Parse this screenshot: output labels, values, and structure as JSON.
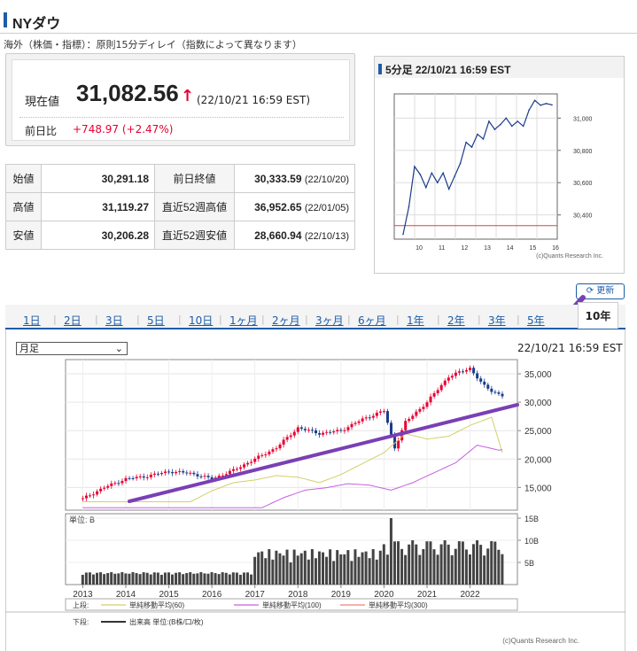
{
  "header": {
    "title": "NYダウ"
  },
  "note": "海外（株価・指標）：原則15分ディレイ（指数によって異なります）",
  "price": {
    "label": "現在値",
    "value": "31,082.56",
    "arrow": "↑",
    "time": "(22/10/21 16:59 EST)",
    "change_label": "前日比",
    "change": "+748.97 (+2.47%)"
  },
  "stats": [
    {
      "l1": "始値",
      "v1": "30,291.18",
      "l2": "前日終値",
      "v2": "30,333.59",
      "d2": "(22/10/20)"
    },
    {
      "l1": "高値",
      "v1": "31,119.27",
      "l2": "直近52週高値",
      "v2": "36,952.65",
      "d2": "(22/01/05)"
    },
    {
      "l1": "安値",
      "v1": "30,206.28",
      "l2": "直近52週安値",
      "v2": "28,660.94",
      "d2": "(22/10/13)"
    }
  ],
  "mini_chart": {
    "title": "5分足 22/10/21 16:59 EST",
    "y_ticks": [
      "31,000",
      "30,800",
      "30,600",
      "30,400"
    ],
    "x_ticks": [
      "10",
      "11",
      "12",
      "13",
      "14",
      "15",
      "16"
    ],
    "credit": "(c)Quants Research Inc.",
    "reference_line": 30333.59,
    "color": "#1a3c8a"
  },
  "update_button": "更新",
  "tabs": [
    "1日",
    "2日",
    "3日",
    "5日",
    "10日",
    "1ヶ月",
    "2ヶ月",
    "3ヶ月",
    "6ヶ月",
    "1年",
    "2年",
    "3年",
    "5年",
    "10年"
  ],
  "active_tab": "10年",
  "main_chart": {
    "period_select": "月足",
    "timestamp": "22/10/21 16:59 EST",
    "y_ticks": [
      "35,000",
      "30,000",
      "25,000",
      "20,000",
      "15,000"
    ],
    "vol_unit": "単位: B",
    "vol_ticks": [
      "15B",
      "10B",
      "5B"
    ],
    "x_ticks": [
      "2013",
      "2014",
      "2015",
      "2016",
      "2017",
      "2018",
      "2019",
      "2020",
      "2021",
      "2022"
    ],
    "legend_upper_label": "上段:",
    "legend_upper": [
      "単純移動平均(60)",
      "単純移動平均(100)",
      "単純移動平均(300)"
    ],
    "legend_lower_label": "下段:",
    "legend_lower": "出来高 単位:(B株/口/枚)",
    "credit": "(c)Quants Research Inc.",
    "colors": {
      "up": "#e60033",
      "down": "#1a3c8a",
      "ma60": "#d4cf6a",
      "ma100": "#c561e0",
      "ma300": "#f08070",
      "trend": "#7a3fb5"
    }
  },
  "chart_data": [
    {
      "type": "line",
      "title": "5分足 22/10/21 16:59 EST",
      "x": [
        "09:35",
        "09:45",
        "10:00",
        "10:15",
        "10:30",
        "10:45",
        "11:00",
        "11:15",
        "11:30",
        "11:45",
        "12:00",
        "12:15",
        "12:30",
        "12:45",
        "13:00",
        "13:15",
        "13:30",
        "13:45",
        "14:00",
        "14:15",
        "14:30",
        "14:45",
        "15:00",
        "15:15",
        "15:30",
        "15:45",
        "16:00"
      ],
      "y": [
        30280,
        30450,
        30700,
        30650,
        30570,
        30660,
        30600,
        30660,
        30560,
        30640,
        30720,
        30850,
        30820,
        30900,
        30870,
        30980,
        30930,
        30960,
        31000,
        30950,
        30980,
        30950,
        31050,
        31110,
        31080,
        31090,
        31082
      ],
      "ylim": [
        30250,
        31150
      ],
      "reference": 30333.59
    },
    {
      "type": "line",
      "title": "10年 月足",
      "x": [
        2013,
        2013.5,
        2014,
        2014.5,
        2015,
        2015.5,
        2016,
        2016.5,
        2017,
        2017.5,
        2018,
        2018.5,
        2019,
        2019.5,
        2020,
        2020.25,
        2020.5,
        2021,
        2021.5,
        2022,
        2022.3,
        2022.5,
        2022.8
      ],
      "y": [
        13000,
        15000,
        16500,
        17000,
        17800,
        17500,
        16500,
        18000,
        20000,
        22000,
        25500,
        24500,
        25000,
        27000,
        28500,
        22000,
        26500,
        30000,
        34500,
        36000,
        33000,
        32000,
        31000
      ],
      "ylim": [
        11000,
        37500
      ],
      "volume_ylim": [
        0,
        16
      ]
    }
  ]
}
